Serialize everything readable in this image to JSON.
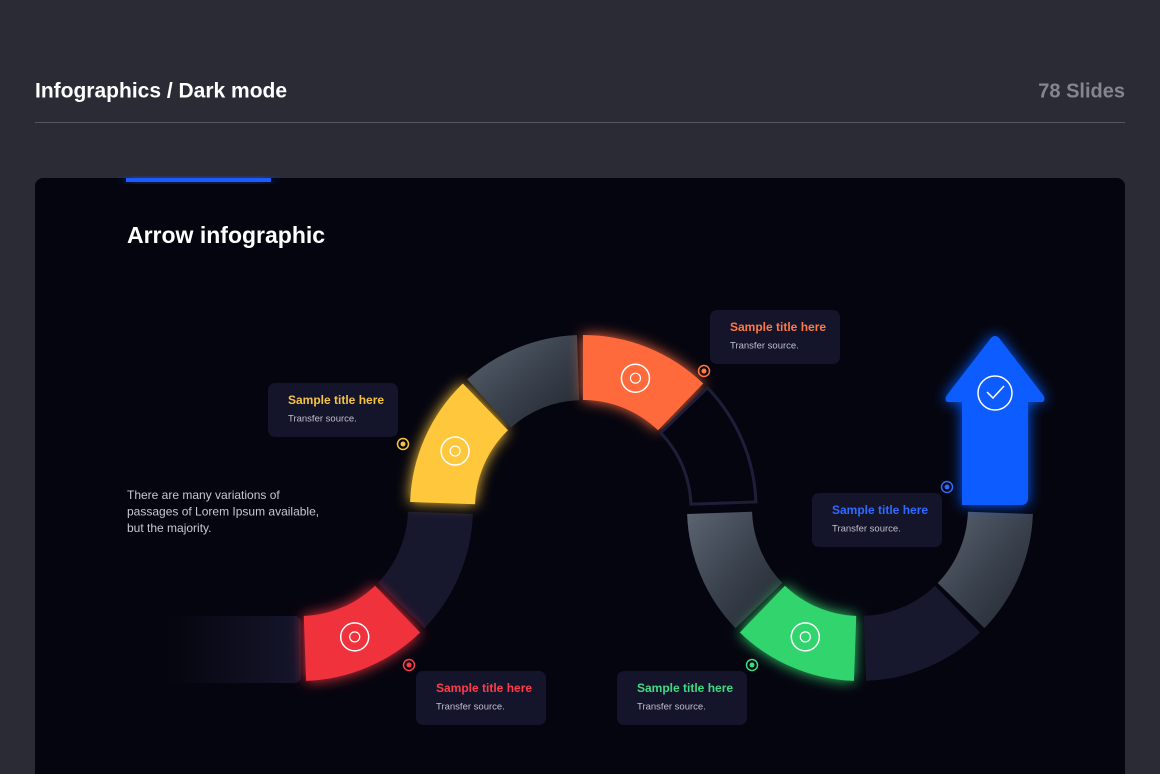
{
  "header": {
    "title": "Infographics / Dark mode",
    "slide_count": "78 Slides"
  },
  "slide": {
    "title": "Arrow infographic",
    "description": [
      "There are many variations of",
      "passages of Lorem Ipsum available,",
      "but the majority."
    ],
    "callouts": [
      {
        "title": "Sample title here",
        "source": "Transfer source."
      },
      {
        "title": "Sample title here",
        "source": "Transfer source."
      },
      {
        "title": "Sample title here",
        "source": "Transfer source."
      },
      {
        "title": "Sample title here",
        "source": "Transfer source."
      },
      {
        "title": "Sample title here",
        "source": "Transfer source."
      }
    ]
  }
}
